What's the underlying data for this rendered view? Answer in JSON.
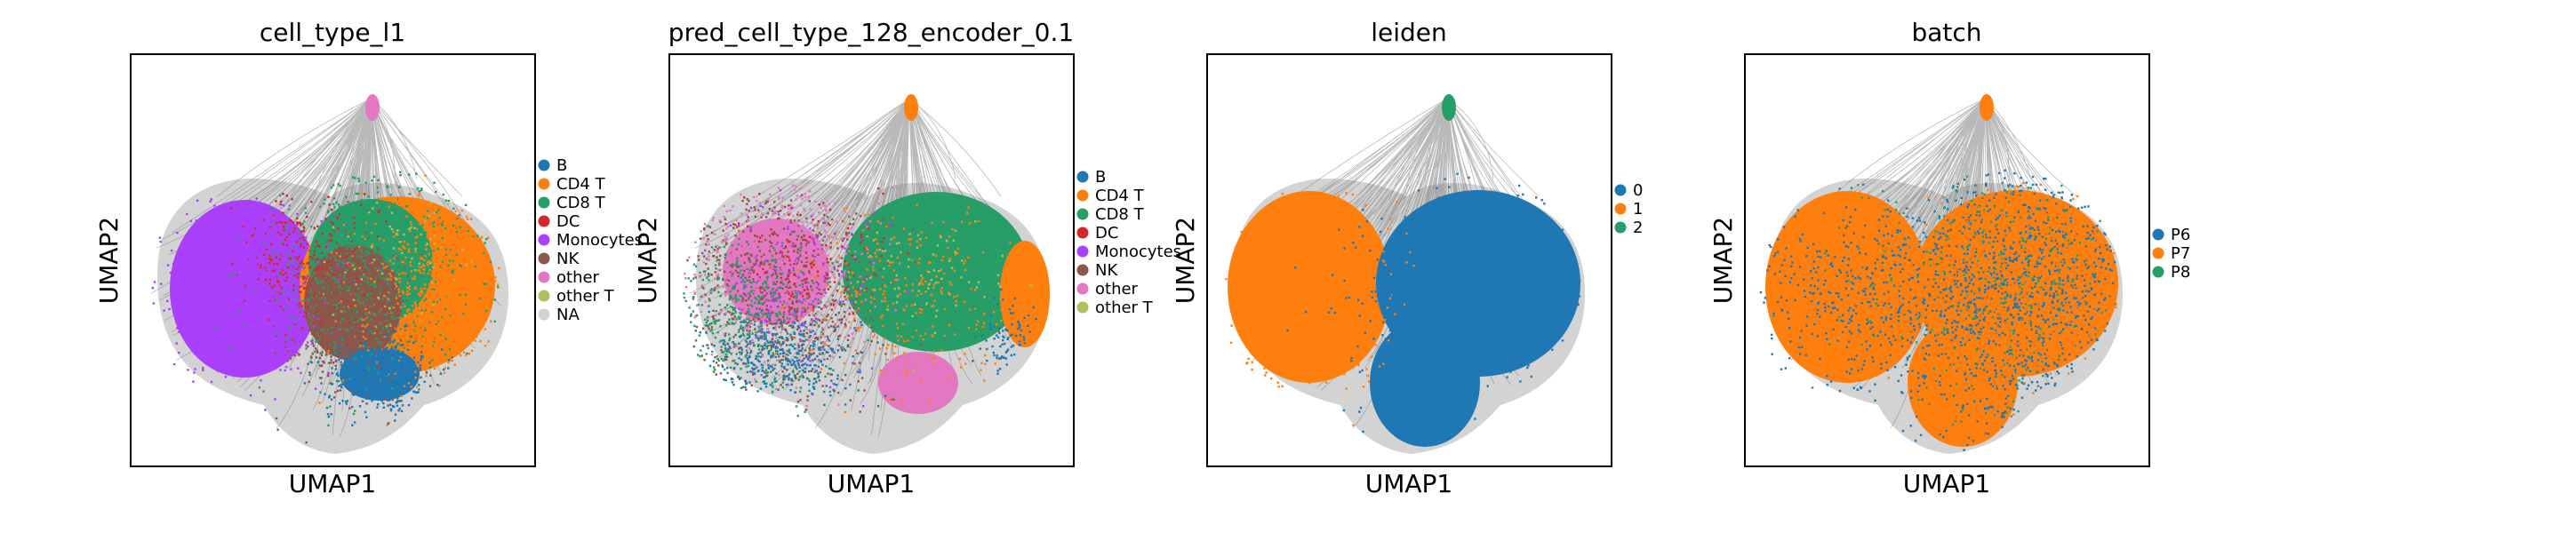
{
  "colors": {
    "B": "#1f77b4",
    "CD4 T": "#ff7f0e",
    "CD8 T": "#279e68",
    "DC": "#d62728",
    "Monocytes": "#aa40fc",
    "NK": "#8c564b",
    "other": "#e377c2",
    "other T": "#b5bd61",
    "NA": "#d3d3d3",
    "0": "#1f77b4",
    "1": "#ff7f0e",
    "2": "#279e68",
    "P6": "#1f77b4",
    "P7": "#ff7f0e",
    "P8": "#279e68",
    "edge": "#808080"
  },
  "chart_data": [
    {
      "type": "scatter",
      "plot": "UMAP embedding with neighbor graph edges",
      "title": "cell_type_l1",
      "xlabel": "UMAP1",
      "ylabel": "UMAP2",
      "ticks": "hidden",
      "legend_placement": "right",
      "legend": [
        "B",
        "CD4 T",
        "CD8 T",
        "DC",
        "Monocytes",
        "NK",
        "other",
        "other T",
        "NA"
      ]
    },
    {
      "type": "scatter",
      "plot": "UMAP embedding with neighbor graph edges",
      "title": "pred_cell_type_128_encoder_0.1",
      "xlabel": "UMAP1",
      "ylabel": "UMAP2",
      "ticks": "hidden",
      "legend_placement": "right",
      "legend": [
        "B",
        "CD4 T",
        "CD8 T",
        "DC",
        "Monocytes",
        "NK",
        "other",
        "other T"
      ]
    },
    {
      "type": "scatter",
      "plot": "UMAP embedding with neighbor graph edges",
      "title": "leiden",
      "xlabel": "UMAP1",
      "ylabel": "UMAP2",
      "ticks": "hidden",
      "legend_placement": "right",
      "legend": [
        "0",
        "1",
        "2"
      ]
    },
    {
      "type": "scatter",
      "plot": "UMAP embedding with neighbor graph edges",
      "title": "batch",
      "xlabel": "UMAP1",
      "ylabel": "UMAP2",
      "ticks": "hidden",
      "legend_placement": "right",
      "legend": [
        "P6",
        "P7",
        "P8"
      ]
    }
  ]
}
